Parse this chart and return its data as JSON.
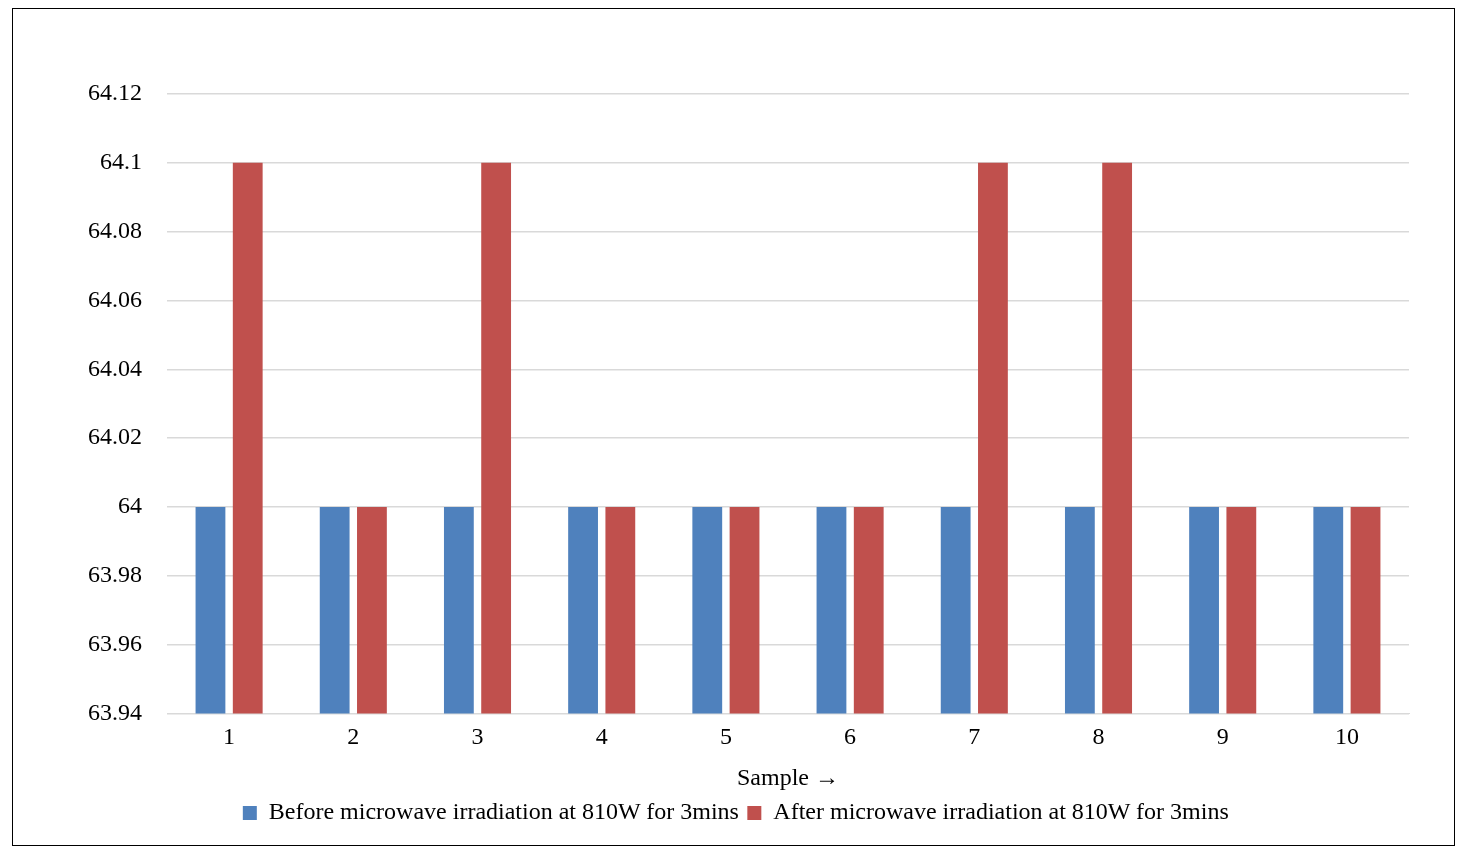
{
  "chart_data": {
    "type": "bar",
    "xlabel": "Sample →",
    "categories": [
      "1",
      "2",
      "3",
      "4",
      "5",
      "6",
      "7",
      "8",
      "9",
      "10"
    ],
    "series": [
      {
        "name": "Before microwave irradiation at 810W for 3mins",
        "color": "#4f81bd",
        "values": [
          64,
          64,
          64,
          64,
          64,
          64,
          64,
          64,
          64,
          64
        ]
      },
      {
        "name": "After microwave irradiation at 810W for 3mins",
        "color": "#c0504d",
        "values": [
          64.1,
          64,
          64.1,
          64,
          64,
          64,
          64.1,
          64.1,
          64,
          64
        ]
      }
    ],
    "ylim": [
      63.94,
      64.12
    ],
    "yticks": [
      63.94,
      63.96,
      63.98,
      64,
      64.02,
      64.04,
      64.06,
      64.08,
      64.1,
      64.12
    ],
    "grid": "y",
    "legend": "bottom"
  }
}
